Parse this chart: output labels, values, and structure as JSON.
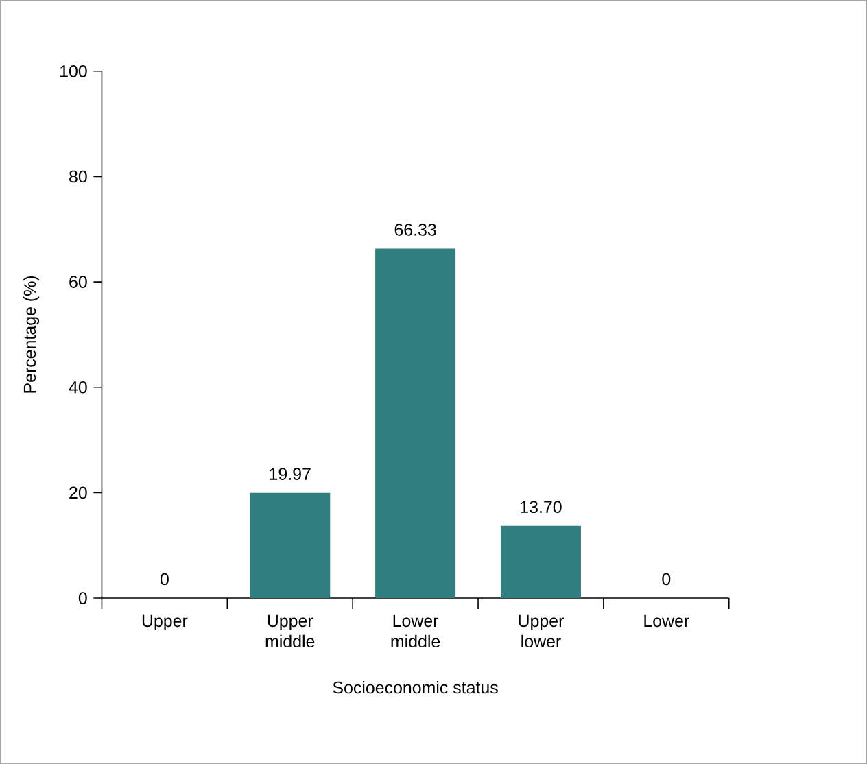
{
  "chart_data": {
    "type": "bar",
    "xlabel": "Socioeconomic status",
    "ylabel": "Percentage (%)",
    "categories": [
      "Upper",
      "Upper middle",
      "Lower middle",
      "Upper lower",
      "Lower"
    ],
    "values": [
      0,
      19.97,
      66.33,
      13.7,
      0
    ],
    "value_labels": [
      "0",
      "19.97",
      "66.33",
      "13.70",
      "0"
    ],
    "color": "#307f7e",
    "ylim": [
      0,
      100
    ],
    "yticks": [
      0,
      20,
      40,
      60,
      80,
      100
    ]
  }
}
